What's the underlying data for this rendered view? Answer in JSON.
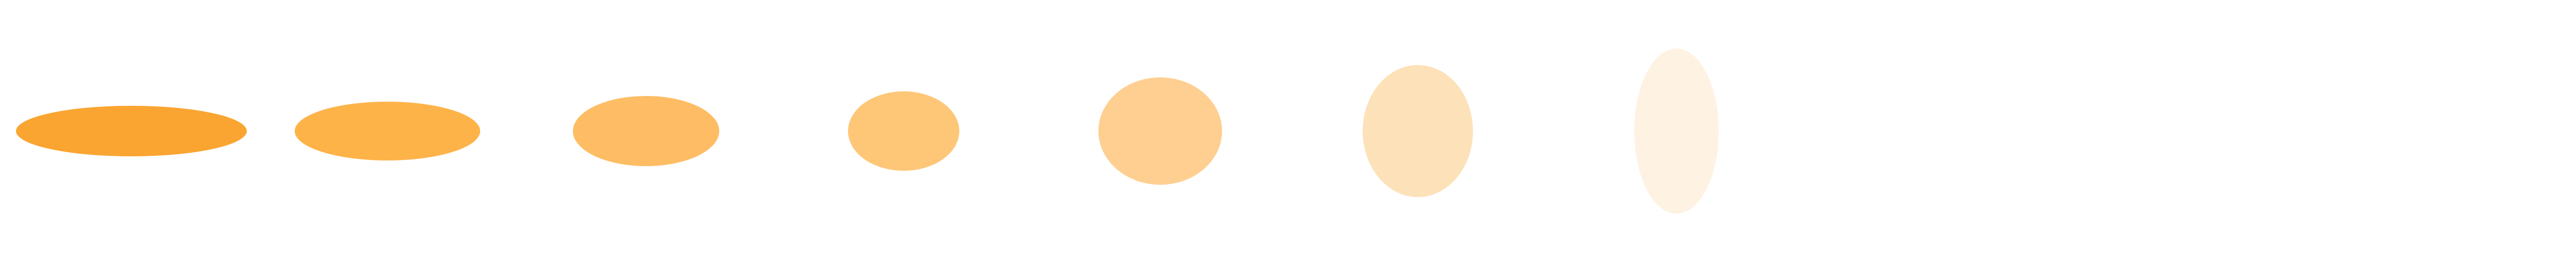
{
  "shapes": [
    {
      "name": "ellipse-1",
      "color": "#FAA531"
    },
    {
      "name": "ellipse-2",
      "color": "#FEB349"
    },
    {
      "name": "ellipse-3",
      "color": "#FEBD64"
    },
    {
      "name": "ellipse-4",
      "color": "#FEC778"
    },
    {
      "name": "ellipse-5",
      "color": "#FECF91"
    },
    {
      "name": "ellipse-6",
      "color": "#FDE1B8"
    },
    {
      "name": "ellipse-7",
      "color": "#FEF2E2"
    }
  ]
}
